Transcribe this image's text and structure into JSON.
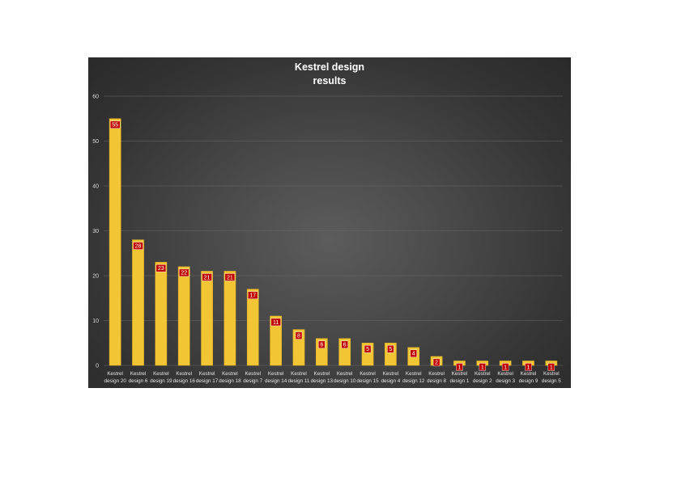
{
  "chart_data": {
    "type": "bar",
    "title_lines": [
      "Kestrel design",
      "results"
    ],
    "categories": [
      "Kestrel design 20",
      "Kestrel design 6",
      "Kestrel design 19",
      "Kestrel design 16",
      "Kestrel design 17",
      "Kestrel design 18",
      "Kestrel design 7",
      "Kestrel design 14",
      "Kestrel design 11",
      "Kestrel design 13",
      "Kestrel design 10",
      "Kestrel design 15",
      "Kestrel design 4",
      "Kestrel design 12",
      "Kestrel design 8",
      "Kestrel design 1",
      "Kestrel design 2",
      "Kestrel design 3",
      "Kestrel design 9",
      "Kestrel design 5"
    ],
    "values": [
      55,
      28,
      23,
      22,
      21,
      21,
      17,
      11,
      8,
      6,
      6,
      5,
      5,
      4,
      2,
      1,
      1,
      1,
      1,
      1
    ],
    "xlabel": "",
    "ylabel": "",
    "ylim": [
      0,
      60
    ],
    "yticks": [
      0,
      10,
      20,
      30,
      40,
      50,
      60
    ],
    "grid": true,
    "legend": "none",
    "colors": {
      "bar": "#f2c535",
      "bar_edge": "#e0b020",
      "data_label_bg": "#c00000",
      "gridline": "#6a6a6a",
      "title": "#ffffff"
    }
  }
}
